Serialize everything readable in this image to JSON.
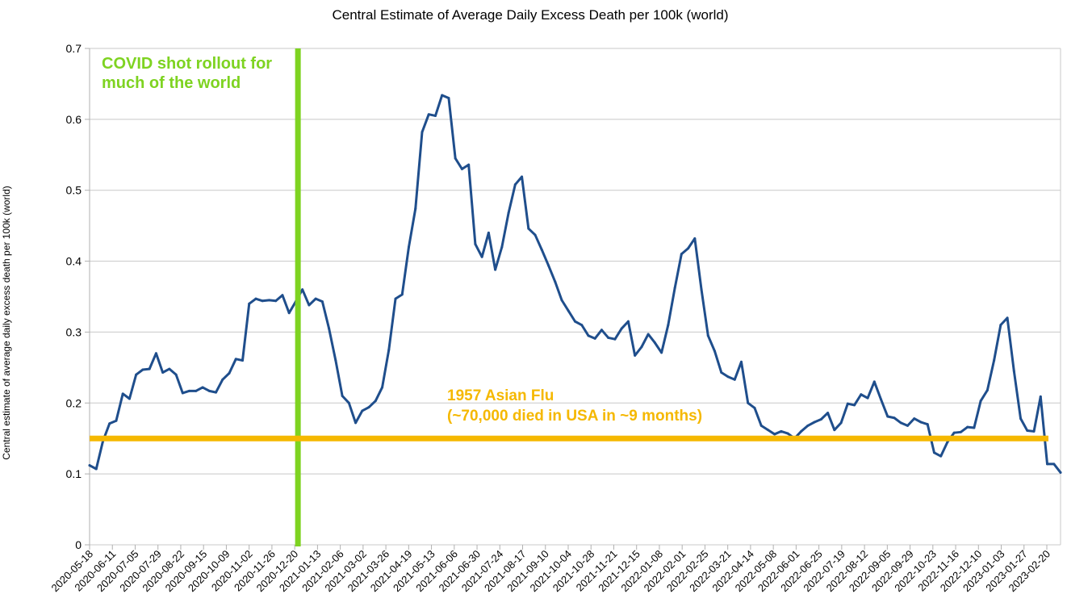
{
  "chart_data": {
    "type": "line",
    "title": "Central Estimate of Average Daily Excess Death per 100k (world)",
    "xlabel": "",
    "ylabel": "Central estimate of average daily excess death per 100k (world)",
    "ylim": [
      0,
      0.7
    ],
    "yticks": [
      "0",
      "0.1",
      "0.2",
      "0.3",
      "0.4",
      "0.5",
      "0.6",
      "0.7"
    ],
    "grid": true,
    "x_tick_labels": [
      "2020-05-18",
      "2020-06-11",
      "2020-07-05",
      "2020-07-29",
      "2020-08-22",
      "2020-09-15",
      "2020-10-09",
      "2020-11-02",
      "2020-11-26",
      "2020-12-20",
      "2021-01-13",
      "2021-02-06",
      "2021-03-02",
      "2021-03-26",
      "2021-04-19",
      "2021-05-13",
      "2021-06-06",
      "2021-06-30",
      "2021-07-24",
      "2021-08-17",
      "2021-09-10",
      "2021-10-04",
      "2021-10-28",
      "2021-11-21",
      "2021-12-15",
      "2022-01-08",
      "2022-02-01",
      "2022-02-25",
      "2022-03-21",
      "2022-04-14",
      "2022-05-08",
      "2022-06-01",
      "2022-06-25",
      "2022-07-19",
      "2022-08-12",
      "2022-09-05",
      "2022-09-29",
      "2022-10-23",
      "2022-11-16",
      "2022-12-10",
      "2023-01-03",
      "2023-01-27",
      "2023-02-20"
    ],
    "series": [
      {
        "name": "",
        "color": "#1f4e8c",
        "values": [
          0.112,
          0.107,
          0.146,
          0.171,
          0.175,
          0.213,
          0.206,
          0.24,
          0.247,
          0.248,
          0.27,
          0.243,
          0.248,
          0.24,
          0.214,
          0.217,
          0.217,
          0.222,
          0.217,
          0.215,
          0.233,
          0.242,
          0.262,
          0.26,
          0.34,
          0.347,
          0.344,
          0.345,
          0.344,
          0.352,
          0.327,
          0.343,
          0.36,
          0.338,
          0.347,
          0.343,
          0.305,
          0.26,
          0.21,
          0.2,
          0.172,
          0.189,
          0.194,
          0.203,
          0.222,
          0.275,
          0.347,
          0.353,
          0.42,
          0.474,
          0.582,
          0.607,
          0.605,
          0.634,
          0.63,
          0.545,
          0.53,
          0.536,
          0.424,
          0.406,
          0.44,
          0.388,
          0.42,
          0.468,
          0.508,
          0.519,
          0.446,
          0.437,
          0.416,
          0.394,
          0.371,
          0.345,
          0.33,
          0.315,
          0.31,
          0.295,
          0.291,
          0.303,
          0.292,
          0.29,
          0.305,
          0.315,
          0.267,
          0.279,
          0.297,
          0.285,
          0.271,
          0.31,
          0.362,
          0.41,
          0.418,
          0.432,
          0.36,
          0.295,
          0.273,
          0.243,
          0.237,
          0.233,
          0.258,
          0.2,
          0.193,
          0.168,
          0.162,
          0.156,
          0.16,
          0.157,
          0.15,
          0.16,
          0.168,
          0.173,
          0.177,
          0.186,
          0.162,
          0.172,
          0.199,
          0.197,
          0.212,
          0.207,
          0.23,
          0.205,
          0.181,
          0.179,
          0.172,
          0.168,
          0.178,
          0.173,
          0.17,
          0.13,
          0.125,
          0.145,
          0.158,
          0.159,
          0.166,
          0.165,
          0.203,
          0.218,
          0.26,
          0.31,
          0.32,
          0.245,
          0.178,
          0.161,
          0.16,
          0.209,
          0.114,
          0.114,
          0.102
        ]
      }
    ],
    "reference_lines": [
      {
        "orientation": "vertical",
        "at_x_label": "2020-12-20",
        "color": "#7ed321",
        "label_lines": [
          "COVID shot rollout for",
          "much of the world"
        ]
      },
      {
        "orientation": "horizontal",
        "at_y": 0.15,
        "color": "#f5b800",
        "label_lines": [
          "1957 Asian Flu",
          "(~70,000 died in USA in ~9 months)"
        ]
      }
    ]
  }
}
